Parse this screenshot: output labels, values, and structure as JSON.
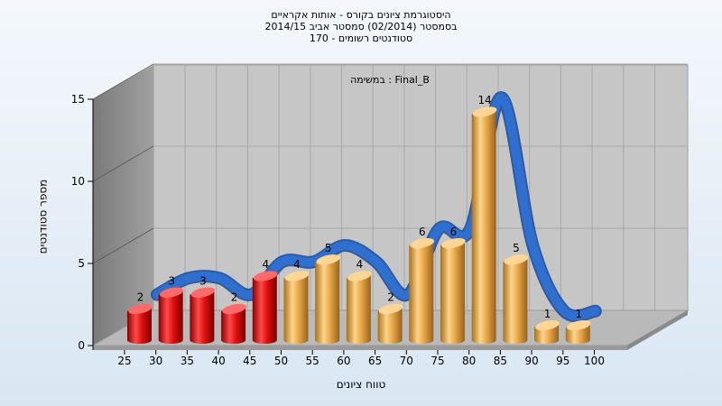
{
  "titles": {
    "line1": "היסטוגרמת ציונים בקורס - אותות אקראיים",
    "line2": "בסמסטר  (02/2014)  סמסטר אביב 2014/15",
    "line3": "170 - סטודנטים רשומים"
  },
  "colors": {
    "fail": "#e01010",
    "pass": "#e8a84a",
    "curve": "#2f6fd0",
    "floor": "#b4b4b4",
    "wall": "#8a8a8a",
    "plane": "#c8c8c8"
  },
  "chart_data": {
    "type": "bar",
    "annotation": "במשימה : Final_B",
    "xlabel": "טווח ציונים",
    "ylabel": "מספר סטודנטים",
    "ylim": [
      0,
      15
    ],
    "y_ticks": [
      "0",
      "5",
      "10",
      "15"
    ],
    "x_ticks": [
      "25",
      "30",
      "35",
      "40",
      "45",
      "50",
      "55",
      "60",
      "65",
      "70",
      "75",
      "80",
      "85",
      "90",
      "95",
      "100"
    ],
    "bars": [
      {
        "label": "2",
        "value": 2,
        "group": "fail"
      },
      {
        "label": "3",
        "value": 3,
        "group": "fail"
      },
      {
        "label": "3",
        "value": 3,
        "group": "fail"
      },
      {
        "label": "2",
        "value": 2,
        "group": "fail"
      },
      {
        "label": "4",
        "value": 4,
        "group": "fail"
      },
      {
        "label": "4",
        "value": 4,
        "group": "pass"
      },
      {
        "label": "5",
        "value": 5,
        "group": "pass"
      },
      {
        "label": "4",
        "value": 4,
        "group": "pass"
      },
      {
        "label": "2",
        "value": 2,
        "group": "pass"
      },
      {
        "label": "6",
        "value": 6,
        "group": "pass"
      },
      {
        "label": "6",
        "value": 6,
        "group": "pass"
      },
      {
        "label": "14",
        "value": 14,
        "group": "pass"
      },
      {
        "label": "5",
        "value": 5,
        "group": "pass"
      },
      {
        "label": "1",
        "value": 1,
        "group": "pass"
      },
      {
        "label": "1",
        "value": 1,
        "group": "pass"
      }
    ]
  }
}
